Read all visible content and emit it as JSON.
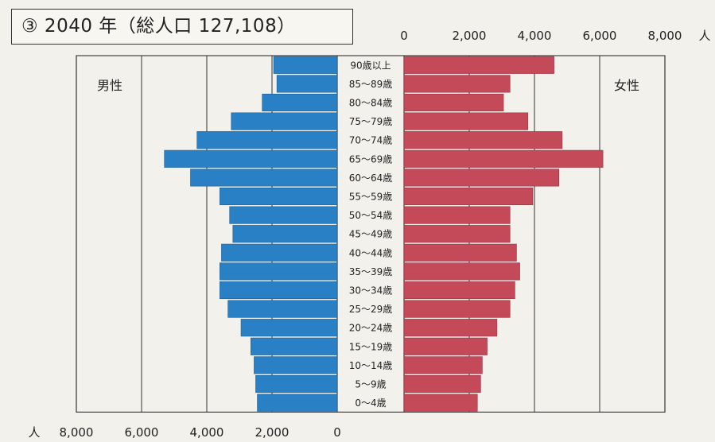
{
  "title": "③ 2040 年（総人口 127,108）",
  "chart_data": {
    "type": "bar",
    "categories": [
      "90歳以上",
      "85～89歳",
      "80～84歳",
      "75～79歳",
      "70～74歳",
      "65～69歳",
      "60～64歳",
      "55～59歳",
      "50～54歳",
      "45～49歳",
      "40～44歳",
      "35～39歳",
      "30～34歳",
      "25～29歳",
      "20～24歳",
      "15～19歳",
      "10～14歳",
      "5～9歳",
      "0～4歳"
    ],
    "series": [
      {
        "name": "男性",
        "color": "#2a80c4",
        "values": [
          1950,
          1850,
          2300,
          3250,
          4300,
          5300,
          4500,
          3600,
          3300,
          3200,
          3550,
          3600,
          3600,
          3350,
          2950,
          2650,
          2550,
          2500,
          2450
        ]
      },
      {
        "name": "女性",
        "color": "#c44a5a",
        "values": [
          4600,
          3250,
          3050,
          3800,
          4850,
          6100,
          4750,
          3950,
          3250,
          3250,
          3450,
          3550,
          3400,
          3250,
          2850,
          2550,
          2400,
          2350,
          2250
        ]
      }
    ],
    "male_axis": {
      "ticks": [
        "8,000",
        "6,000",
        "4,000",
        "2,000",
        "0"
      ],
      "unit": "人",
      "range": [
        0,
        8000
      ]
    },
    "female_axis": {
      "ticks": [
        "0",
        "2,000",
        "4,000",
        "6,000",
        "8,000"
      ],
      "unit": "人",
      "range": [
        0,
        8000
      ]
    },
    "male_label": "男性",
    "female_label": "女性"
  }
}
